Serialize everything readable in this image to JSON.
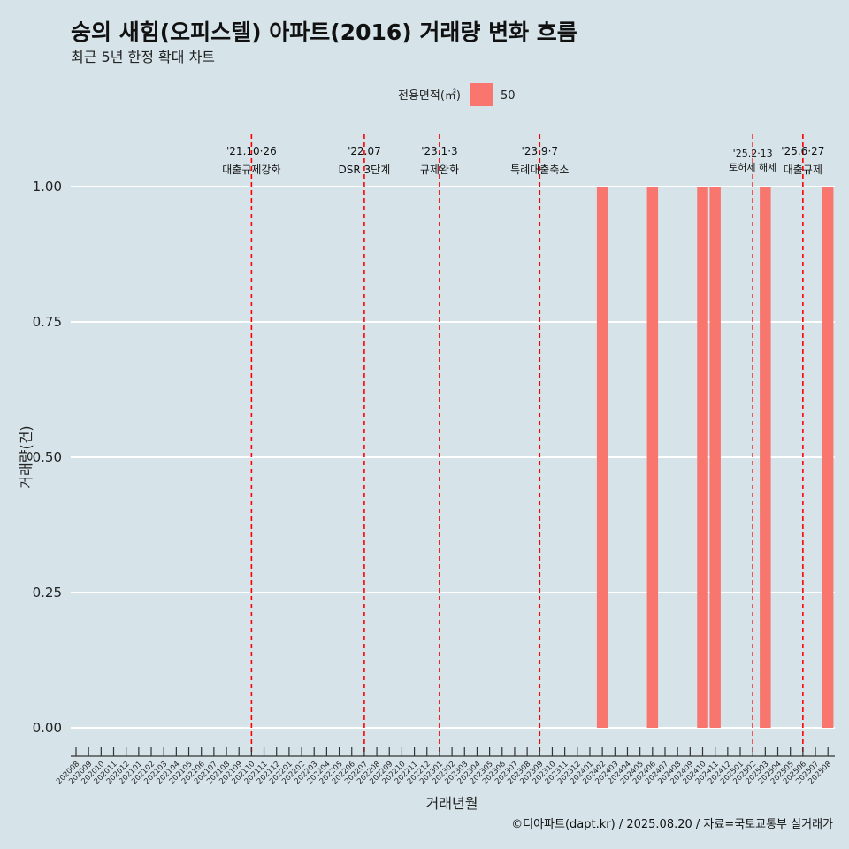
{
  "chart_data": {
    "type": "bar",
    "title": "숭의 새힘(오피스텔) 아파트(2016) 거래량 변화 흐름",
    "subtitle": "최근 5년 한정 확대 차트",
    "xlabel": "거래년월",
    "ylabel": "거래량(건)",
    "ylim": [
      0,
      1
    ],
    "yticks": [
      "0.00",
      "0.25",
      "0.50",
      "0.75",
      "1.00"
    ],
    "categories": [
      "202008",
      "202009",
      "202010",
      "202011",
      "202012",
      "202101",
      "202102",
      "202103",
      "202104",
      "202105",
      "202106",
      "202107",
      "202108",
      "202109",
      "202110",
      "202111",
      "202112",
      "202201",
      "202202",
      "202203",
      "202204",
      "202205",
      "202206",
      "202207",
      "202208",
      "202209",
      "202210",
      "202211",
      "202212",
      "202301",
      "202302",
      "202303",
      "202304",
      "202305",
      "202306",
      "202307",
      "202308",
      "202309",
      "202310",
      "202311",
      "202312",
      "202401",
      "202402",
      "202403",
      "202404",
      "202405",
      "202406",
      "202407",
      "202408",
      "202409",
      "202410",
      "202411",
      "202412",
      "202501",
      "202502",
      "202503",
      "202504",
      "202505",
      "202506",
      "202507",
      "202508"
    ],
    "series": [
      {
        "name": "50",
        "color": "#f8766d",
        "points": [
          {
            "x": "202402",
            "y": 1
          },
          {
            "x": "202406",
            "y": 1
          },
          {
            "x": "202410",
            "y": 1
          },
          {
            "x": "202411",
            "y": 1
          },
          {
            "x": "202503",
            "y": 1
          },
          {
            "x": "202508",
            "y": 1
          }
        ]
      }
    ],
    "legend": {
      "title": "전용면적(㎡)",
      "position": "top"
    },
    "annotations": [
      {
        "x": "202110",
        "date": "'21.10·26",
        "text": "대출규제강화"
      },
      {
        "x": "202207",
        "date": "'22.07",
        "text": "DSR 3단계"
      },
      {
        "x": "202301",
        "date": "'23.1·3",
        "text": "규제완화"
      },
      {
        "x": "202309",
        "date": "'23.9·7",
        "text": "특례대출축소"
      },
      {
        "x": "202502",
        "date": "'25.2·13",
        "text": "토허제 해제"
      },
      {
        "x": "202506",
        "date": "'25.6·27",
        "text": "대출규제"
      }
    ],
    "annotation_color": "#ff0000",
    "caption": "©디아파트(dapt.kr) / 2025.08.20 / 자료=국토교통부 실거래가"
  }
}
